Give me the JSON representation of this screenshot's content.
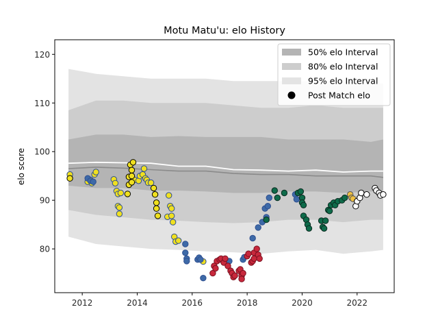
{
  "chart_data": {
    "type": "scatter",
    "title": "Motu Matu'u: elo History",
    "xlabel": "",
    "ylabel": "elo score",
    "xlim": [
      2011.0,
      2023.35
    ],
    "ylim": [
      71.0,
      123.0
    ],
    "xticks": [
      2012,
      2014,
      2016,
      2018,
      2020,
      2022
    ],
    "yticks": [
      80,
      90,
      100,
      110,
      120
    ],
    "legend": {
      "position": "top-right",
      "entries": [
        {
          "label": "50% elo Interval",
          "kind": "band50"
        },
        {
          "label": "80% elo Interval",
          "kind": "band80"
        },
        {
          "label": "95% elo Interval",
          "kind": "band95"
        },
        {
          "label": "Post Match elo",
          "kind": "point"
        }
      ]
    },
    "colors": {
      "band95": "#e3e3e3",
      "band80": "#cdcdcd",
      "band50": "#b4b4b4",
      "median_line": "#8a8a8a",
      "mean_line": "#ffffff"
    },
    "bands": {
      "x": [
        2011.5,
        2012.5,
        2013.5,
        2014.5,
        2015.5,
        2016.5,
        2017.5,
        2018.5,
        2019.5,
        2020.5,
        2021.5,
        2022.5,
        2022.95
      ],
      "p2_5": [
        82.5,
        81.0,
        80.5,
        80.0,
        79.8,
        79.5,
        79.3,
        79.0,
        79.5,
        79.8,
        79.0,
        79.5,
        79.8
      ],
      "p10": [
        88.0,
        87.0,
        86.5,
        86.0,
        85.8,
        85.5,
        85.3,
        85.5,
        86.0,
        86.0,
        85.5,
        86.0,
        86.0
      ],
      "p25": [
        93.0,
        92.5,
        92.5,
        92.0,
        92.0,
        91.8,
        91.5,
        91.5,
        91.8,
        91.8,
        91.5,
        91.8,
        92.0
      ],
      "p75": [
        102.5,
        103.5,
        103.5,
        103.0,
        103.2,
        103.0,
        103.0,
        103.0,
        102.5,
        102.5,
        102.5,
        102.0,
        102.5
      ],
      "p90": [
        108.5,
        110.5,
        110.5,
        110.0,
        110.0,
        110.0,
        109.5,
        109.0,
        109.0,
        109.5,
        109.0,
        109.0,
        109.0
      ],
      "p97_5": [
        117.0,
        116.0,
        115.5,
        115.0,
        115.0,
        115.0,
        114.5,
        114.5,
        114.5,
        114.5,
        114.5,
        114.0,
        114.0
      ],
      "median": [
        96.5,
        96.8,
        96.6,
        96.3,
        96.0,
        96.0,
        95.5,
        95.3,
        95.3,
        95.0,
        95.0,
        95.0,
        94.7
      ],
      "mean": [
        97.6,
        97.8,
        97.7,
        97.6,
        97.0,
        97.0,
        96.3,
        96.2,
        96.0,
        96.2,
        95.8,
        96.0,
        96.0
      ]
    },
    "series": [
      {
        "name": "",
        "color": "#f0e020",
        "edge": "#2f4f8f",
        "points": [
          [
            2011.55,
            95.3
          ],
          [
            2012.2,
            93.8
          ],
          [
            2012.3,
            94.2
          ],
          [
            2012.35,
            93.5
          ],
          [
            2012.45,
            95.3
          ],
          [
            2012.5,
            95.8
          ],
          [
            2013.15,
            94.3
          ],
          [
            2013.2,
            93.5
          ],
          [
            2013.25,
            91.9
          ],
          [
            2013.3,
            91.3
          ],
          [
            2013.3,
            88.8
          ],
          [
            2013.35,
            88.5
          ],
          [
            2013.35,
            87.2
          ],
          [
            2013.4,
            91.5
          ],
          [
            2013.9,
            94.2
          ],
          [
            2014.05,
            94.0
          ],
          [
            2014.1,
            95.0
          ],
          [
            2014.2,
            95.3
          ],
          [
            2014.25,
            96.5
          ],
          [
            2014.3,
            94.5
          ],
          [
            2014.35,
            94.2
          ],
          [
            2014.4,
            93.6
          ],
          [
            2014.5,
            93.6
          ],
          [
            2015.15,
            91.0
          ],
          [
            2015.2,
            88.8
          ],
          [
            2015.1,
            86.6
          ],
          [
            2015.25,
            88.3
          ],
          [
            2015.25,
            86.8
          ],
          [
            2015.3,
            85.5
          ],
          [
            2015.35,
            82.5
          ],
          [
            2015.4,
            81.5
          ],
          [
            2015.5,
            81.7
          ],
          [
            2016.4,
            77.4
          ]
        ]
      },
      {
        "name": "",
        "color": "#f0e020",
        "edge": "#000000",
        "points": [
          [
            2011.55,
            94.5
          ],
          [
            2013.65,
            91.3
          ],
          [
            2013.7,
            93.2
          ],
          [
            2013.7,
            94.8
          ],
          [
            2013.75,
            97.3
          ],
          [
            2013.8,
            95.0
          ],
          [
            2013.8,
            96.2
          ],
          [
            2013.85,
            97.8
          ],
          [
            2013.8,
            93.7
          ],
          [
            2014.6,
            92.5
          ],
          [
            2014.65,
            91.2
          ],
          [
            2014.7,
            89.5
          ],
          [
            2014.7,
            88.3
          ],
          [
            2014.75,
            86.8
          ]
        ]
      },
      {
        "name": "",
        "color": "#3e6aa8",
        "edge": "#2f4f8f",
        "points": [
          [
            2012.2,
            94.5
          ],
          [
            2012.3,
            94.0
          ],
          [
            2012.4,
            93.8
          ],
          [
            2015.75,
            81.0
          ],
          [
            2015.75,
            79.2
          ],
          [
            2015.8,
            78.0
          ],
          [
            2015.8,
            77.5
          ],
          [
            2016.2,
            77.8
          ],
          [
            2016.25,
            78.2
          ],
          [
            2016.3,
            77.8
          ],
          [
            2016.4,
            74.0
          ],
          [
            2017.35,
            77.5
          ],
          [
            2017.85,
            77.8
          ],
          [
            2017.9,
            78.3
          ],
          [
            2018.2,
            82.2
          ],
          [
            2018.4,
            84.4
          ],
          [
            2018.55,
            85.5
          ],
          [
            2018.65,
            88.3
          ],
          [
            2018.7,
            86.5
          ],
          [
            2018.75,
            88.8
          ],
          [
            2018.8,
            90.5
          ],
          [
            2019.75,
            91.2
          ],
          [
            2019.8,
            90.2
          ]
        ]
      },
      {
        "name": "",
        "color": "#c8283c",
        "edge": "#7a1020",
        "points": [
          [
            2016.75,
            75.0
          ],
          [
            2016.8,
            76.5
          ],
          [
            2016.85,
            76.0
          ],
          [
            2016.9,
            77.5
          ],
          [
            2017.0,
            77.8
          ],
          [
            2017.05,
            78.0
          ],
          [
            2017.15,
            77.2
          ],
          [
            2017.2,
            78.0
          ],
          [
            2017.3,
            76.5
          ],
          [
            2017.4,
            75.5
          ],
          [
            2017.45,
            75.0
          ],
          [
            2017.5,
            74.2
          ],
          [
            2017.55,
            74.5
          ],
          [
            2017.7,
            75.5
          ],
          [
            2017.75,
            75.8
          ],
          [
            2017.8,
            74.5
          ],
          [
            2017.8,
            73.8
          ],
          [
            2017.85,
            75.0
          ],
          [
            2018.0,
            78.5
          ],
          [
            2018.05,
            79.0
          ],
          [
            2018.15,
            77.2
          ],
          [
            2018.2,
            77.5
          ],
          [
            2018.25,
            78.0
          ],
          [
            2018.25,
            79.2
          ],
          [
            2018.35,
            80.0
          ],
          [
            2018.4,
            78.8
          ],
          [
            2018.45,
            78.0
          ]
        ]
      },
      {
        "name": "",
        "color": "#0e6b4a",
        "edge": "#0a2a1f",
        "points": [
          [
            2018.7,
            86.0
          ],
          [
            2019.0,
            92.0
          ],
          [
            2019.1,
            90.5
          ],
          [
            2019.35,
            91.5
          ],
          [
            2019.85,
            91.5
          ],
          [
            2019.95,
            91.8
          ],
          [
            2020.0,
            90.5
          ],
          [
            2020.0,
            89.5
          ],
          [
            2020.05,
            89.0
          ],
          [
            2020.05,
            86.8
          ],
          [
            2020.15,
            86.0
          ],
          [
            2020.2,
            85.0
          ],
          [
            2020.25,
            84.2
          ],
          [
            2020.7,
            85.8
          ],
          [
            2020.75,
            84.5
          ],
          [
            2020.8,
            84.2
          ],
          [
            2020.85,
            85.8
          ],
          [
            2020.95,
            88.0
          ],
          [
            2021.0,
            87.8
          ],
          [
            2021.05,
            89.0
          ],
          [
            2021.15,
            89.5
          ],
          [
            2021.2,
            89.0
          ],
          [
            2021.3,
            89.8
          ],
          [
            2021.45,
            90.0
          ],
          [
            2021.55,
            90.5
          ]
        ]
      },
      {
        "name": "",
        "color": "#f0c040",
        "edge": "#555555",
        "points": [
          [
            2021.75,
            91.2
          ],
          [
            2021.8,
            90.5
          ],
          [
            2021.85,
            90.3
          ]
        ]
      },
      {
        "name": "",
        "color": "#ffffff",
        "edge": "#000000",
        "points": [
          [
            2021.95,
            88.8
          ],
          [
            2022.0,
            89.8
          ],
          [
            2022.1,
            90.5
          ],
          [
            2022.15,
            91.5
          ],
          [
            2022.35,
            91.2
          ],
          [
            2022.65,
            92.5
          ],
          [
            2022.7,
            92.0
          ],
          [
            2022.8,
            91.5
          ],
          [
            2022.85,
            91.0
          ],
          [
            2022.95,
            91.2
          ]
        ]
      }
    ]
  }
}
